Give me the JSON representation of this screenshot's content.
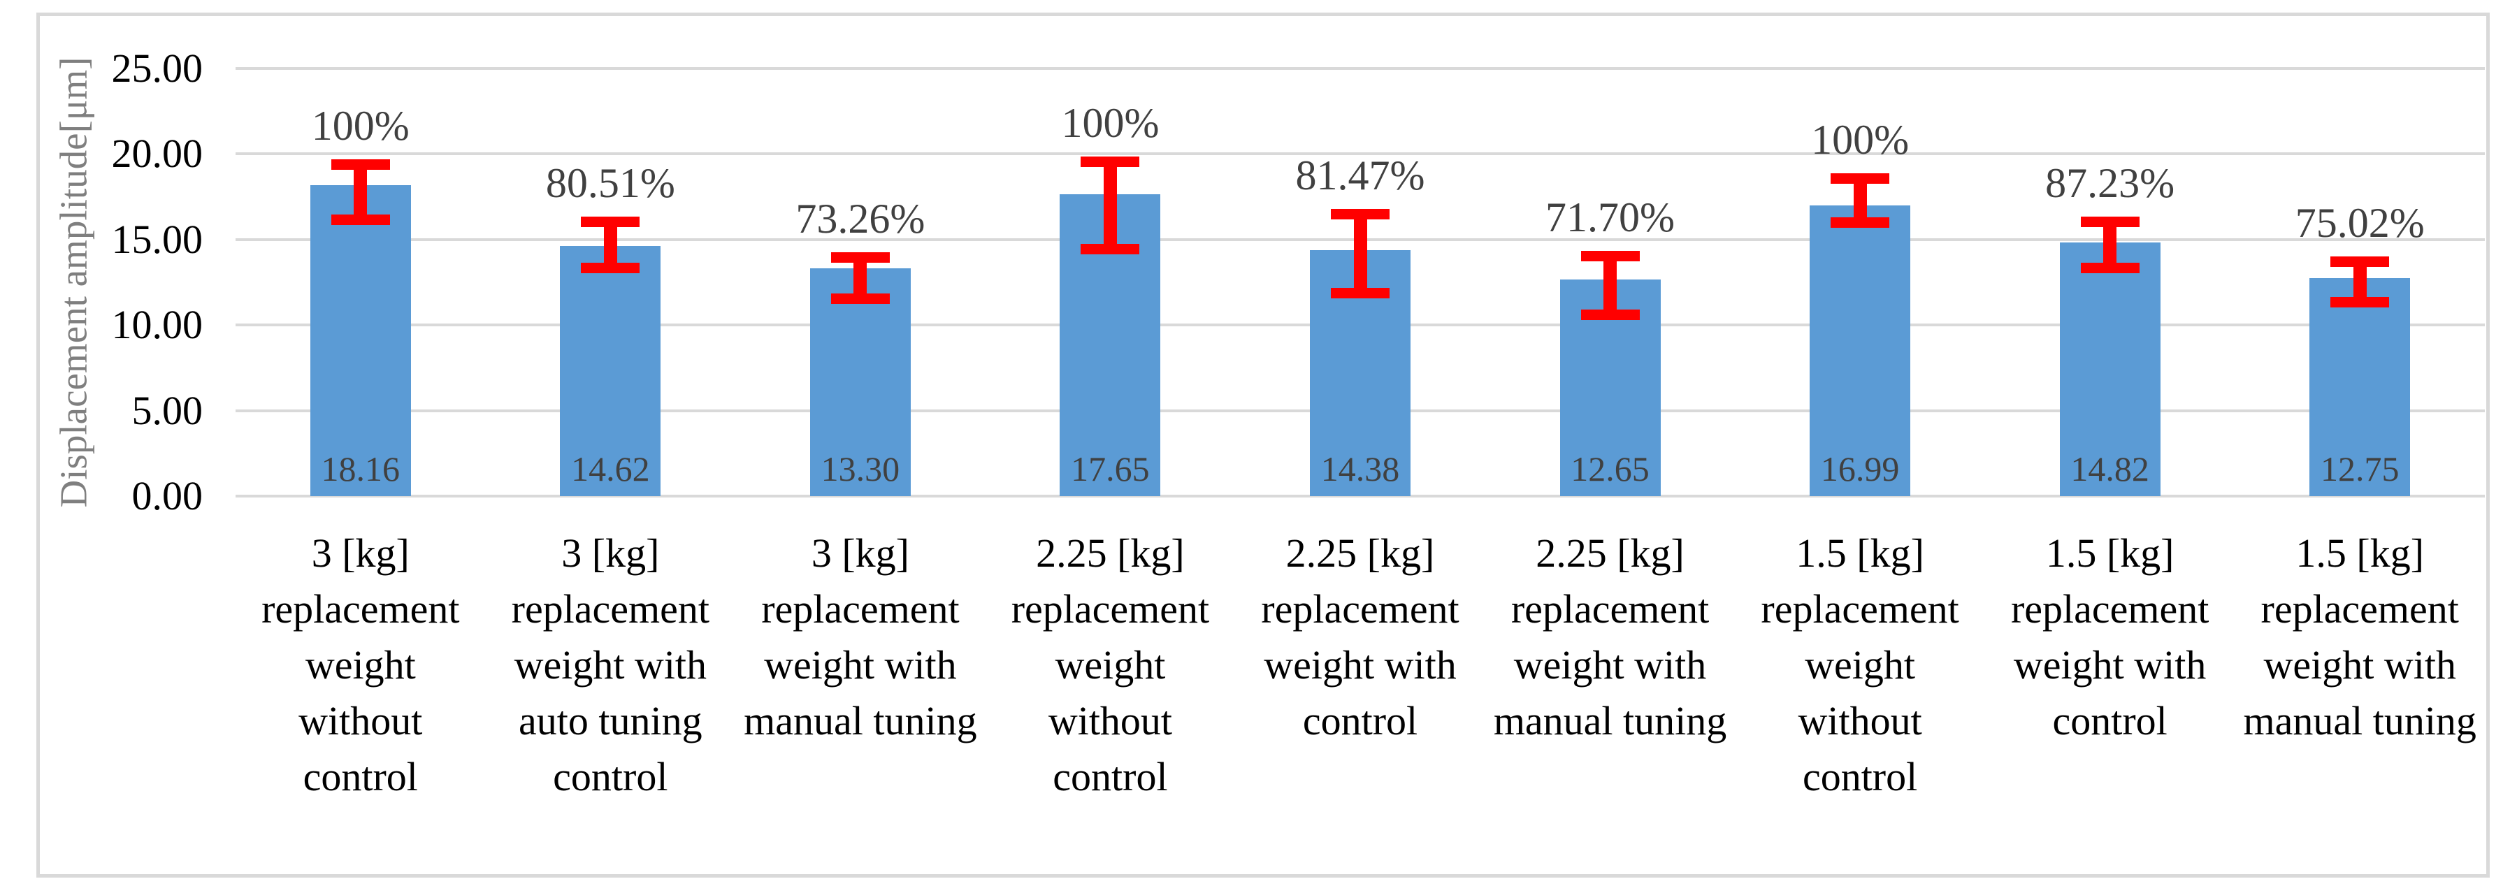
{
  "chart_data": {
    "type": "bar",
    "title": "",
    "xlabel": "",
    "ylabel": "Displacement amplitude[μm]",
    "ylim": [
      0,
      25
    ],
    "ytick_step": 5,
    "yticks": [
      {
        "value": 0,
        "label": "0.00"
      },
      {
        "value": 5,
        "label": "5.00"
      },
      {
        "value": 10,
        "label": "10.00"
      },
      {
        "value": 15,
        "label": "15.00"
      },
      {
        "value": 20,
        "label": "20.00"
      },
      {
        "value": 25,
        "label": "25.00"
      }
    ],
    "grid": true,
    "legend": "none",
    "categories": [
      "3 [kg]\nreplacement\nweight\nwithout\ncontrol",
      "3 [kg]\nreplacement\nweight with\nauto tuning\ncontrol",
      "3 [kg]\nreplacement\nweight with\nmanual tuning",
      "2.25 [kg]\nreplacement\nweight\nwithout\ncontrol",
      "2.25 [kg]\nreplacement\nweight with\ncontrol",
      "2.25 [kg]\nreplacement\nweight with\nmanual tuning",
      "1.5 [kg]\nreplacement\nweight\nwithout\ncontrol",
      "1.5 [kg]\nreplacement\nweight with\ncontrol",
      "1.5 [kg]\nreplacement\nweight with\nmanual tuning"
    ],
    "values": [
      18.16,
      14.62,
      13.3,
      17.65,
      14.38,
      12.65,
      16.99,
      14.82,
      12.75
    ],
    "value_labels": [
      "18.16",
      "14.62",
      "13.30",
      "17.65",
      "14.38",
      "12.65",
      "16.99",
      "14.82",
      "12.75"
    ],
    "percent_labels": [
      "100%",
      "80.51%",
      "73.26%",
      "100%",
      "81.47%",
      "71.70%",
      "100%",
      "87.23%",
      "75.02%"
    ],
    "error_bars": [
      {
        "high": 19.4,
        "low": 16.15
      },
      {
        "high": 16.05,
        "low": 13.35
      },
      {
        "high": 13.95,
        "low": 11.55
      },
      {
        "high": 19.55,
        "low": 14.45
      },
      {
        "high": 16.5,
        "low": 11.85
      },
      {
        "high": 14.05,
        "low": 10.6
      },
      {
        "high": 18.55,
        "low": 16.0
      },
      {
        "high": 16.05,
        "low": 13.35
      },
      {
        "high": 13.7,
        "low": 11.35
      }
    ],
    "colors": {
      "bar_fill": "#5B9BD5",
      "error_bar": "#FF0000",
      "gridline": "#D9D9D9",
      "chart_border": "#D9D9D9",
      "tick_label_text": "#000000",
      "category_text": "#000000",
      "data_label_text": "#404040",
      "axis_title_text": "#7F7F7F",
      "background": "#FFFFFF"
    }
  }
}
